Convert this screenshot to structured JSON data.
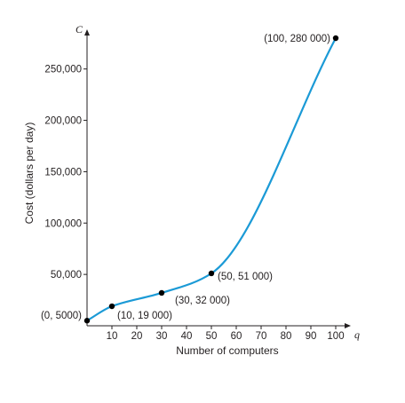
{
  "chart_data": {
    "type": "line",
    "xlabel": "Number of computers",
    "ylabel": "Cost (dollars per day)",
    "x_axis_var": "q",
    "y_axis_var": "C",
    "xlim": [
      0,
      100
    ],
    "ylim": [
      0,
      280000
    ],
    "x_ticks": [
      10,
      20,
      30,
      40,
      50,
      60,
      70,
      80,
      90,
      100
    ],
    "y_ticks": [
      50000,
      100000,
      150000,
      200000,
      250000
    ],
    "y_tick_labels": [
      "50,000",
      "100,000",
      "150,000",
      "200,000",
      "250,000"
    ],
    "grid": false,
    "series": [
      {
        "color": "#1b9ad6",
        "x": [
          0,
          10,
          30,
          50,
          100
        ],
        "y": [
          5000,
          19000,
          32000,
          51000,
          280000
        ]
      }
    ],
    "points": [
      {
        "x": 0,
        "y": 5000,
        "label": "(0, 5000)"
      },
      {
        "x": 10,
        "y": 19000,
        "label": "(10, 19 000)"
      },
      {
        "x": 30,
        "y": 32000,
        "label": "(30, 32 000)"
      },
      {
        "x": 50,
        "y": 51000,
        "label": "(50, 51 000)"
      },
      {
        "x": 100,
        "y": 280000,
        "label": "(100, 280 000)"
      }
    ]
  }
}
